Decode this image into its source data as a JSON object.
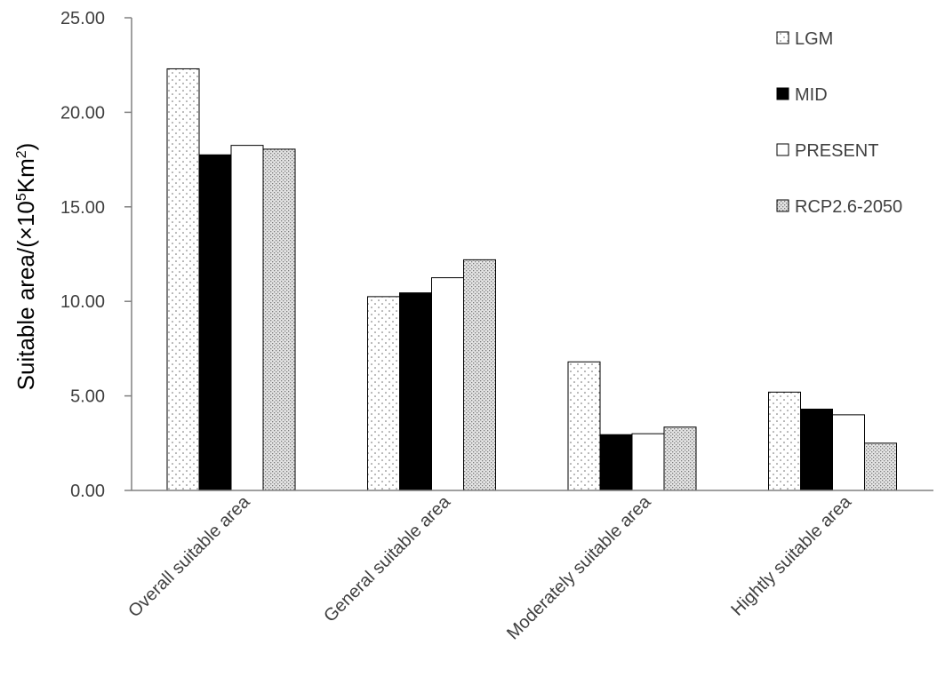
{
  "chart_data": {
    "type": "bar",
    "ylabel": "Suitable area/(×10⁵Km²)",
    "ylabel_parts": {
      "main": "Suitable area/(×10",
      "exp1": "5",
      "mid": "Km",
      "exp2": "2",
      "end": ")"
    },
    "ylim": [
      0,
      25
    ],
    "yticks": [
      "0.00",
      "5.00",
      "10.00",
      "15.00",
      "20.00",
      "25.00"
    ],
    "ytick_values": [
      0,
      5,
      10,
      15,
      20,
      25
    ],
    "categories": [
      "Overall suitable area",
      "General suitable area",
      "Moderately suitable area",
      "Hightly suitable area"
    ],
    "series": [
      {
        "name": "LGM",
        "values": [
          22.3,
          10.25,
          6.8,
          5.2
        ],
        "pattern": "sparse-dots"
      },
      {
        "name": "MID",
        "values": [
          17.75,
          10.45,
          2.95,
          4.3
        ],
        "pattern": "solid-black"
      },
      {
        "name": "PRESENT",
        "values": [
          18.25,
          11.25,
          3.0,
          4.0
        ],
        "pattern": "white"
      },
      {
        "name": "RCP2.6-2050",
        "values": [
          18.05,
          12.2,
          3.35,
          2.5
        ],
        "pattern": "dense-dots"
      }
    ],
    "legend_position": "top-right",
    "grid": false
  }
}
